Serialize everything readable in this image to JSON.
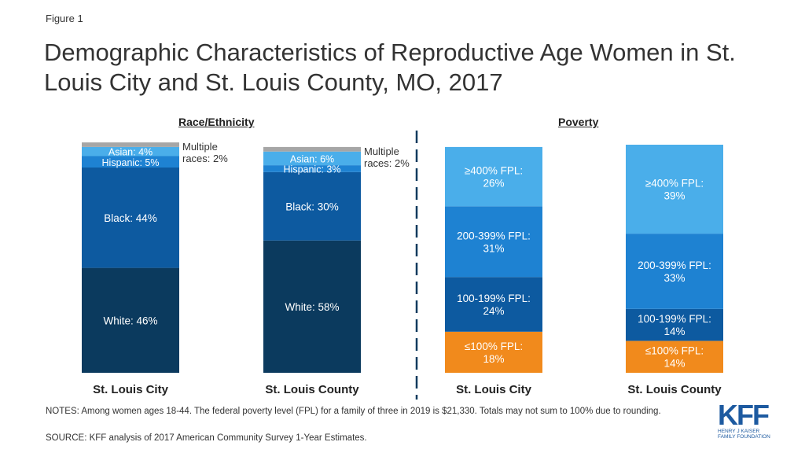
{
  "figure_label": "Figure 1",
  "title": "Demographic Characteristics of Reproductive Age Women in St. Louis City and St. Louis County, MO, 2017",
  "colors": {
    "white": "#0b3a5e",
    "black": "#0d5aa0",
    "hispanic": "#1e82d2",
    "asian": "#4aaeea",
    "multiple": "#a6a6a6",
    "fpl400": "#4aaeea",
    "fpl200": "#1e82d2",
    "fpl100": "#0d5aa0",
    "fpl_low": "#f18a1c",
    "divider": "#0b3a5e"
  },
  "chart_data": [
    {
      "type": "bar",
      "stacked": true,
      "title": "Race/Ethnicity",
      "categories": [
        "St. Louis City",
        "St. Louis County"
      ],
      "series": [
        {
          "name": "White",
          "values": [
            46,
            58
          ],
          "labels": [
            "White: 46%",
            "White: 58%"
          ]
        },
        {
          "name": "Black",
          "values": [
            44,
            30
          ],
          "labels": [
            "Black: 44%",
            "Black: 30%"
          ]
        },
        {
          "name": "Hispanic",
          "values": [
            5,
            3
          ],
          "labels": [
            "Hispanic: 5%",
            "Hispanic: 3%"
          ]
        },
        {
          "name": "Asian",
          "values": [
            4,
            6
          ],
          "labels": [
            "Asian: 4%",
            "Asian: 6%"
          ]
        },
        {
          "name": "Multiple races",
          "values": [
            2,
            2
          ],
          "labels": [
            "Multiple races: 2%",
            "Multiple races: 2%"
          ]
        }
      ]
    },
    {
      "type": "bar",
      "stacked": true,
      "title": "Poverty",
      "categories": [
        "St. Louis City",
        "St. Louis County"
      ],
      "series": [
        {
          "name": "≤100% FPL",
          "values": [
            18,
            14
          ],
          "labels": [
            "≤100% FPL: 18%",
            "≤100% FPL: 14%"
          ]
        },
        {
          "name": "100-199% FPL",
          "values": [
            24,
            14
          ],
          "labels": [
            "100-199% FPL: 24%",
            "100-199% FPL: 14%"
          ]
        },
        {
          "name": "200-399% FPL",
          "values": [
            31,
            33
          ],
          "labels": [
            "200-399% FPL: 31%",
            "200-399% FPL: 33%"
          ]
        },
        {
          "name": "≥400% FPL",
          "values": [
            26,
            39
          ],
          "labels": [
            "≥400% FPL: 26%",
            "≥400% FPL: 39%"
          ]
        }
      ]
    }
  ],
  "notes": "NOTES: Among women ages 18-44. The federal poverty level (FPL) for a family of three in 2019 is $21,330. Totals may not sum to 100% due to rounding.",
  "source": "SOURCE: KFF analysis of 2017 American Community Survey 1-Year Estimates.",
  "logo": {
    "mark": "KFF",
    "line1": "HENRY J KAISER",
    "line2": "FAMILY FOUNDATION"
  }
}
